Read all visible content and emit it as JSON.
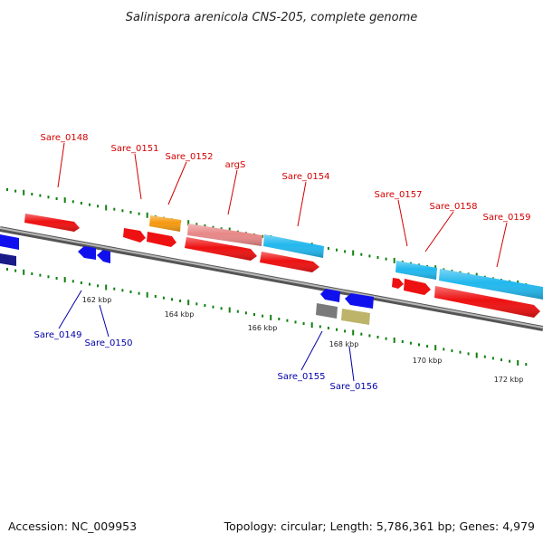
{
  "title": "Salinispora arenicola CNS-205, complete genome",
  "footer": {
    "accession": "Accession: NC_009953",
    "info": "Topology: circular; Length: 5,786,361 bp; Genes: 4,979"
  },
  "scale_labels": [
    "162 kbp",
    "164 kbp",
    "166 kbp",
    "168 kbp",
    "170 kbp",
    "172 kbp"
  ],
  "gene_labels_top": [
    "Sare_0148",
    "Sare_0151",
    "Sare_0152",
    "argS",
    "Sare_0154",
    "Sare_0157",
    "Sare_0158",
    "Sare_0159"
  ],
  "gene_labels_bottom": [
    "Sare_0149",
    "Sare_0150",
    "Sare_0155",
    "Sare_0156"
  ],
  "colors": {
    "forward_gene": "#ee1111",
    "reverse_gene": "#1010ee",
    "cog_cyan": "#22b8ee",
    "cog_pink": "#e88888",
    "cog_orange": "#f59a10",
    "cog_gray": "#7a7a7a",
    "cog_khaki": "#bdb46a",
    "label_top": "#d40000",
    "label_bottom": "#0000a8",
    "tick_green": "#108010",
    "backbone": "#8a8a8a"
  }
}
